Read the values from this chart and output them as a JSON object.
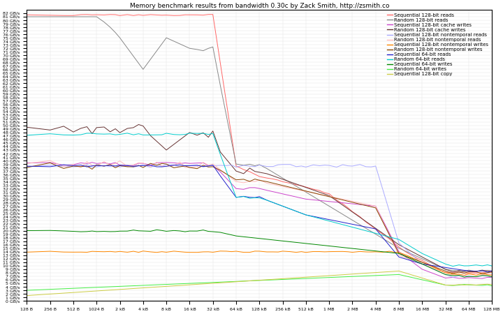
{
  "title": "Memory benchmark results from bandwidth 0.30c by Zack Smith, http://zsmith.co",
  "background_color": "#ffffff",
  "title_fontsize": 6.5,
  "tick_fontsize": 4.5,
  "legend_fontsize": 5.0,
  "series": [
    {
      "label": "Sequential 128-bit reads",
      "color": "#ff6666"
    },
    {
      "label": "Random 128-bit reads",
      "color": "#888888"
    },
    {
      "label": "Sequential 128-bit cache writes",
      "color": "#cc44cc"
    },
    {
      "label": "Random 128-bit cache writes",
      "color": "#663333"
    },
    {
      "label": "Sequential 128-bit nontemporal reads",
      "color": "#aaaaff"
    },
    {
      "label": "Random 128-bit nontemporal reads",
      "color": "#ffbbbb"
    },
    {
      "label": "Sequential 128-bit nontemporal writes",
      "color": "#ff8800"
    },
    {
      "label": "Random 128-bit nontemporal writes",
      "color": "#884400"
    },
    {
      "label": "Sequential 64-bit reads",
      "color": "#2222cc"
    },
    {
      "label": "Random 64-bit reads",
      "color": "#00cccc"
    },
    {
      "label": "Sequential 64-bit writes",
      "color": "#008800"
    },
    {
      "label": "Random 64-bit writes",
      "color": "#44ee44"
    },
    {
      "label": "Sequential 128-bit copy",
      "color": "#cccc44"
    }
  ],
  "ylim": [
    0,
    83
  ],
  "yticks_gb": [
    0,
    1,
    2,
    3,
    4,
    5,
    6,
    7,
    8,
    9,
    10,
    11,
    12,
    13,
    14,
    15,
    16,
    17,
    18,
    19,
    20,
    21,
    22,
    23,
    24,
    25,
    26,
    27,
    28,
    29,
    30,
    31,
    32,
    33,
    34,
    35,
    36,
    37,
    38,
    39,
    40,
    41,
    42,
    43,
    44,
    45,
    46,
    47,
    48,
    49,
    50,
    51,
    52,
    53,
    54,
    55,
    56,
    57,
    58,
    59,
    60,
    61,
    62,
    63,
    64,
    65,
    66,
    67,
    68,
    69,
    70,
    71,
    72,
    73,
    74,
    75,
    76,
    77,
    78,
    79,
    80,
    81,
    82
  ],
  "x_ticks_b": [
    128,
    256,
    512,
    1024,
    2048,
    4096,
    8192,
    16384,
    32768,
    65536,
    131072,
    262144,
    524288,
    1048576,
    2097152,
    4194304,
    8388608,
    16777216,
    33554432,
    67108864,
    134217728
  ],
  "x_tick_labels": [
    "128 B",
    "256 B",
    "512 B",
    "1024 B",
    "2 kB",
    "4 kB",
    "8 kB",
    "16 kB",
    "32 kB",
    "64 kB",
    "128 kB",
    "256 kB",
    "512 kB",
    "1 MB",
    "2 MB",
    "4 MB",
    "8 MB",
    "16 MB",
    "32 MB",
    "64 MB",
    "128 MB"
  ]
}
